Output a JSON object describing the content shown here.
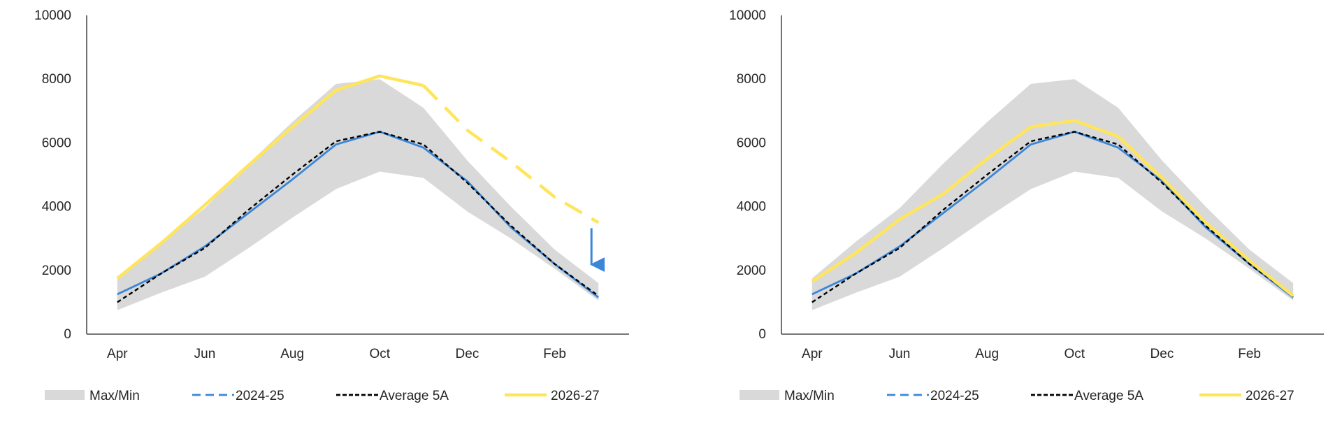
{
  "colors": {
    "band": "#d9d9d9",
    "prev_season": "#3a86d8",
    "average": "#000000",
    "current": "#ffe55c",
    "axis": "#262626",
    "arrow": "#3a86d8"
  },
  "chart_data": [
    {
      "type": "line",
      "title": "",
      "xlabel": "",
      "ylabel": "",
      "ylim": [
        0,
        10000
      ],
      "yticks": [
        0,
        2000,
        4000,
        6000,
        8000,
        10000
      ],
      "categories": [
        "Apr",
        "May",
        "Jun",
        "Jul",
        "Aug",
        "Sep",
        "Oct",
        "Nov",
        "Dec",
        "Jan",
        "Feb",
        "Mar"
      ],
      "xtick_labels": [
        "Apr",
        "",
        "Jun",
        "",
        "Aug",
        "",
        "Oct",
        "",
        "Dec",
        "",
        "Feb",
        ""
      ],
      "grid": false,
      "legend_position": "bottom",
      "band": {
        "name": "Max/Min",
        "max": [
          1750,
          2900,
          3950,
          5350,
          6650,
          7850,
          8000,
          7100,
          5450,
          4000,
          2650,
          1600
        ],
        "min": [
          750,
          1300,
          1800,
          2700,
          3650,
          4550,
          5100,
          4900,
          3850,
          3000,
          2050,
          1050
        ]
      },
      "series": [
        {
          "name": "2024-25",
          "style": "dashed-blue",
          "values": [
            1250,
            1900,
            2750,
            3800,
            4850,
            5950,
            6350,
            5850,
            4800,
            3350,
            2200,
            1150
          ]
        },
        {
          "name": "Average 5A",
          "style": "dashed-black",
          "values": [
            1000,
            1900,
            2700,
            3900,
            5000,
            6050,
            6350,
            5950,
            4750,
            3400,
            2200,
            1200
          ]
        },
        {
          "name": "2026-27",
          "style": "solid-yellow",
          "values": [
            1750,
            2850,
            4050,
            5300,
            6500,
            7650,
            8100,
            7800,
            null,
            null,
            null,
            null
          ]
        },
        {
          "name": "",
          "style": "dashed-yellow",
          "values": [
            null,
            null,
            null,
            null,
            null,
            null,
            null,
            7800,
            6400,
            5400,
            4300,
            3500
          ]
        }
      ],
      "annotations": [
        {
          "type": "arrow-down",
          "category": "Mar",
          "from": 3500,
          "to": 2050
        }
      ]
    },
    {
      "type": "line",
      "title": "",
      "xlabel": "",
      "ylabel": "",
      "ylim": [
        0,
        10000
      ],
      "yticks": [
        0,
        2000,
        4000,
        6000,
        8000,
        10000
      ],
      "categories": [
        "Apr",
        "May",
        "Jun",
        "Jul",
        "Aug",
        "Sep",
        "Oct",
        "Nov",
        "Dec",
        "Jan",
        "Feb",
        "Mar"
      ],
      "xtick_labels": [
        "Apr",
        "",
        "Jun",
        "",
        "Aug",
        "",
        "Oct",
        "",
        "Dec",
        "",
        "Feb",
        ""
      ],
      "grid": false,
      "legend_position": "bottom",
      "band": {
        "name": "Max/Min",
        "max": [
          1750,
          2900,
          3950,
          5350,
          6650,
          7850,
          8000,
          7100,
          5450,
          4000,
          2650,
          1600
        ],
        "min": [
          750,
          1300,
          1800,
          2700,
          3650,
          4550,
          5100,
          4900,
          3850,
          3000,
          2050,
          1050
        ]
      },
      "series": [
        {
          "name": "2024-25",
          "style": "dashed-blue",
          "values": [
            1250,
            1900,
            2750,
            3800,
            4850,
            5950,
            6350,
            5850,
            4800,
            3350,
            2200,
            1150
          ]
        },
        {
          "name": "Average 5A",
          "style": "dashed-black",
          "values": [
            1000,
            1900,
            2700,
            3900,
            5000,
            6050,
            6350,
            5950,
            4750,
            3400,
            2200,
            1200
          ]
        },
        {
          "name": "2026-27",
          "style": "solid-yellow",
          "values": [
            1650,
            2550,
            3600,
            4400,
            5500,
            6500,
            6700,
            6200,
            4900,
            3500,
            2300,
            1200
          ]
        }
      ],
      "annotations": []
    }
  ]
}
